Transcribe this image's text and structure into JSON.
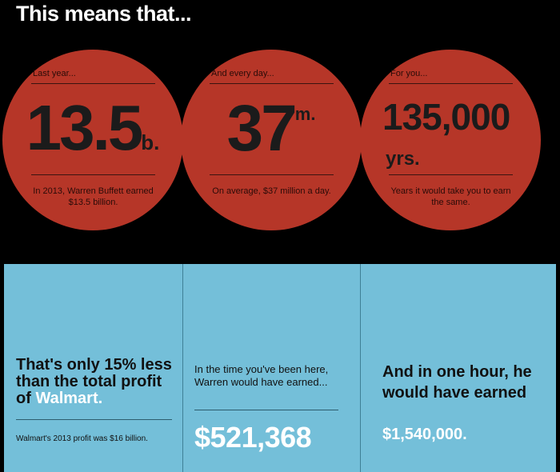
{
  "title": "This means that...",
  "circles": [
    {
      "top": "Last year...",
      "number": "13.5",
      "unit": "b.",
      "caption": "In 2013, Warren Buffett earned $13.5 billion."
    },
    {
      "top": "And every day...",
      "number": "37",
      "unit": "m.",
      "caption": "On average, $37 million a day."
    },
    {
      "top": "For you...",
      "number": "135,000",
      "unit": "yrs.",
      "caption": "Years it would take you to earn the same."
    }
  ],
  "panels": [
    {
      "text": "That's only 15% less than the total profit of",
      "highlight": "Walmart.",
      "caption": "Walmart's 2013 profit was $16 billion."
    },
    {
      "text": "In the time you've been here, Warren would have earned...",
      "amount": "$521,368"
    },
    {
      "text": "And in one hour, he would have earned",
      "amount": "$1,540,000."
    }
  ]
}
